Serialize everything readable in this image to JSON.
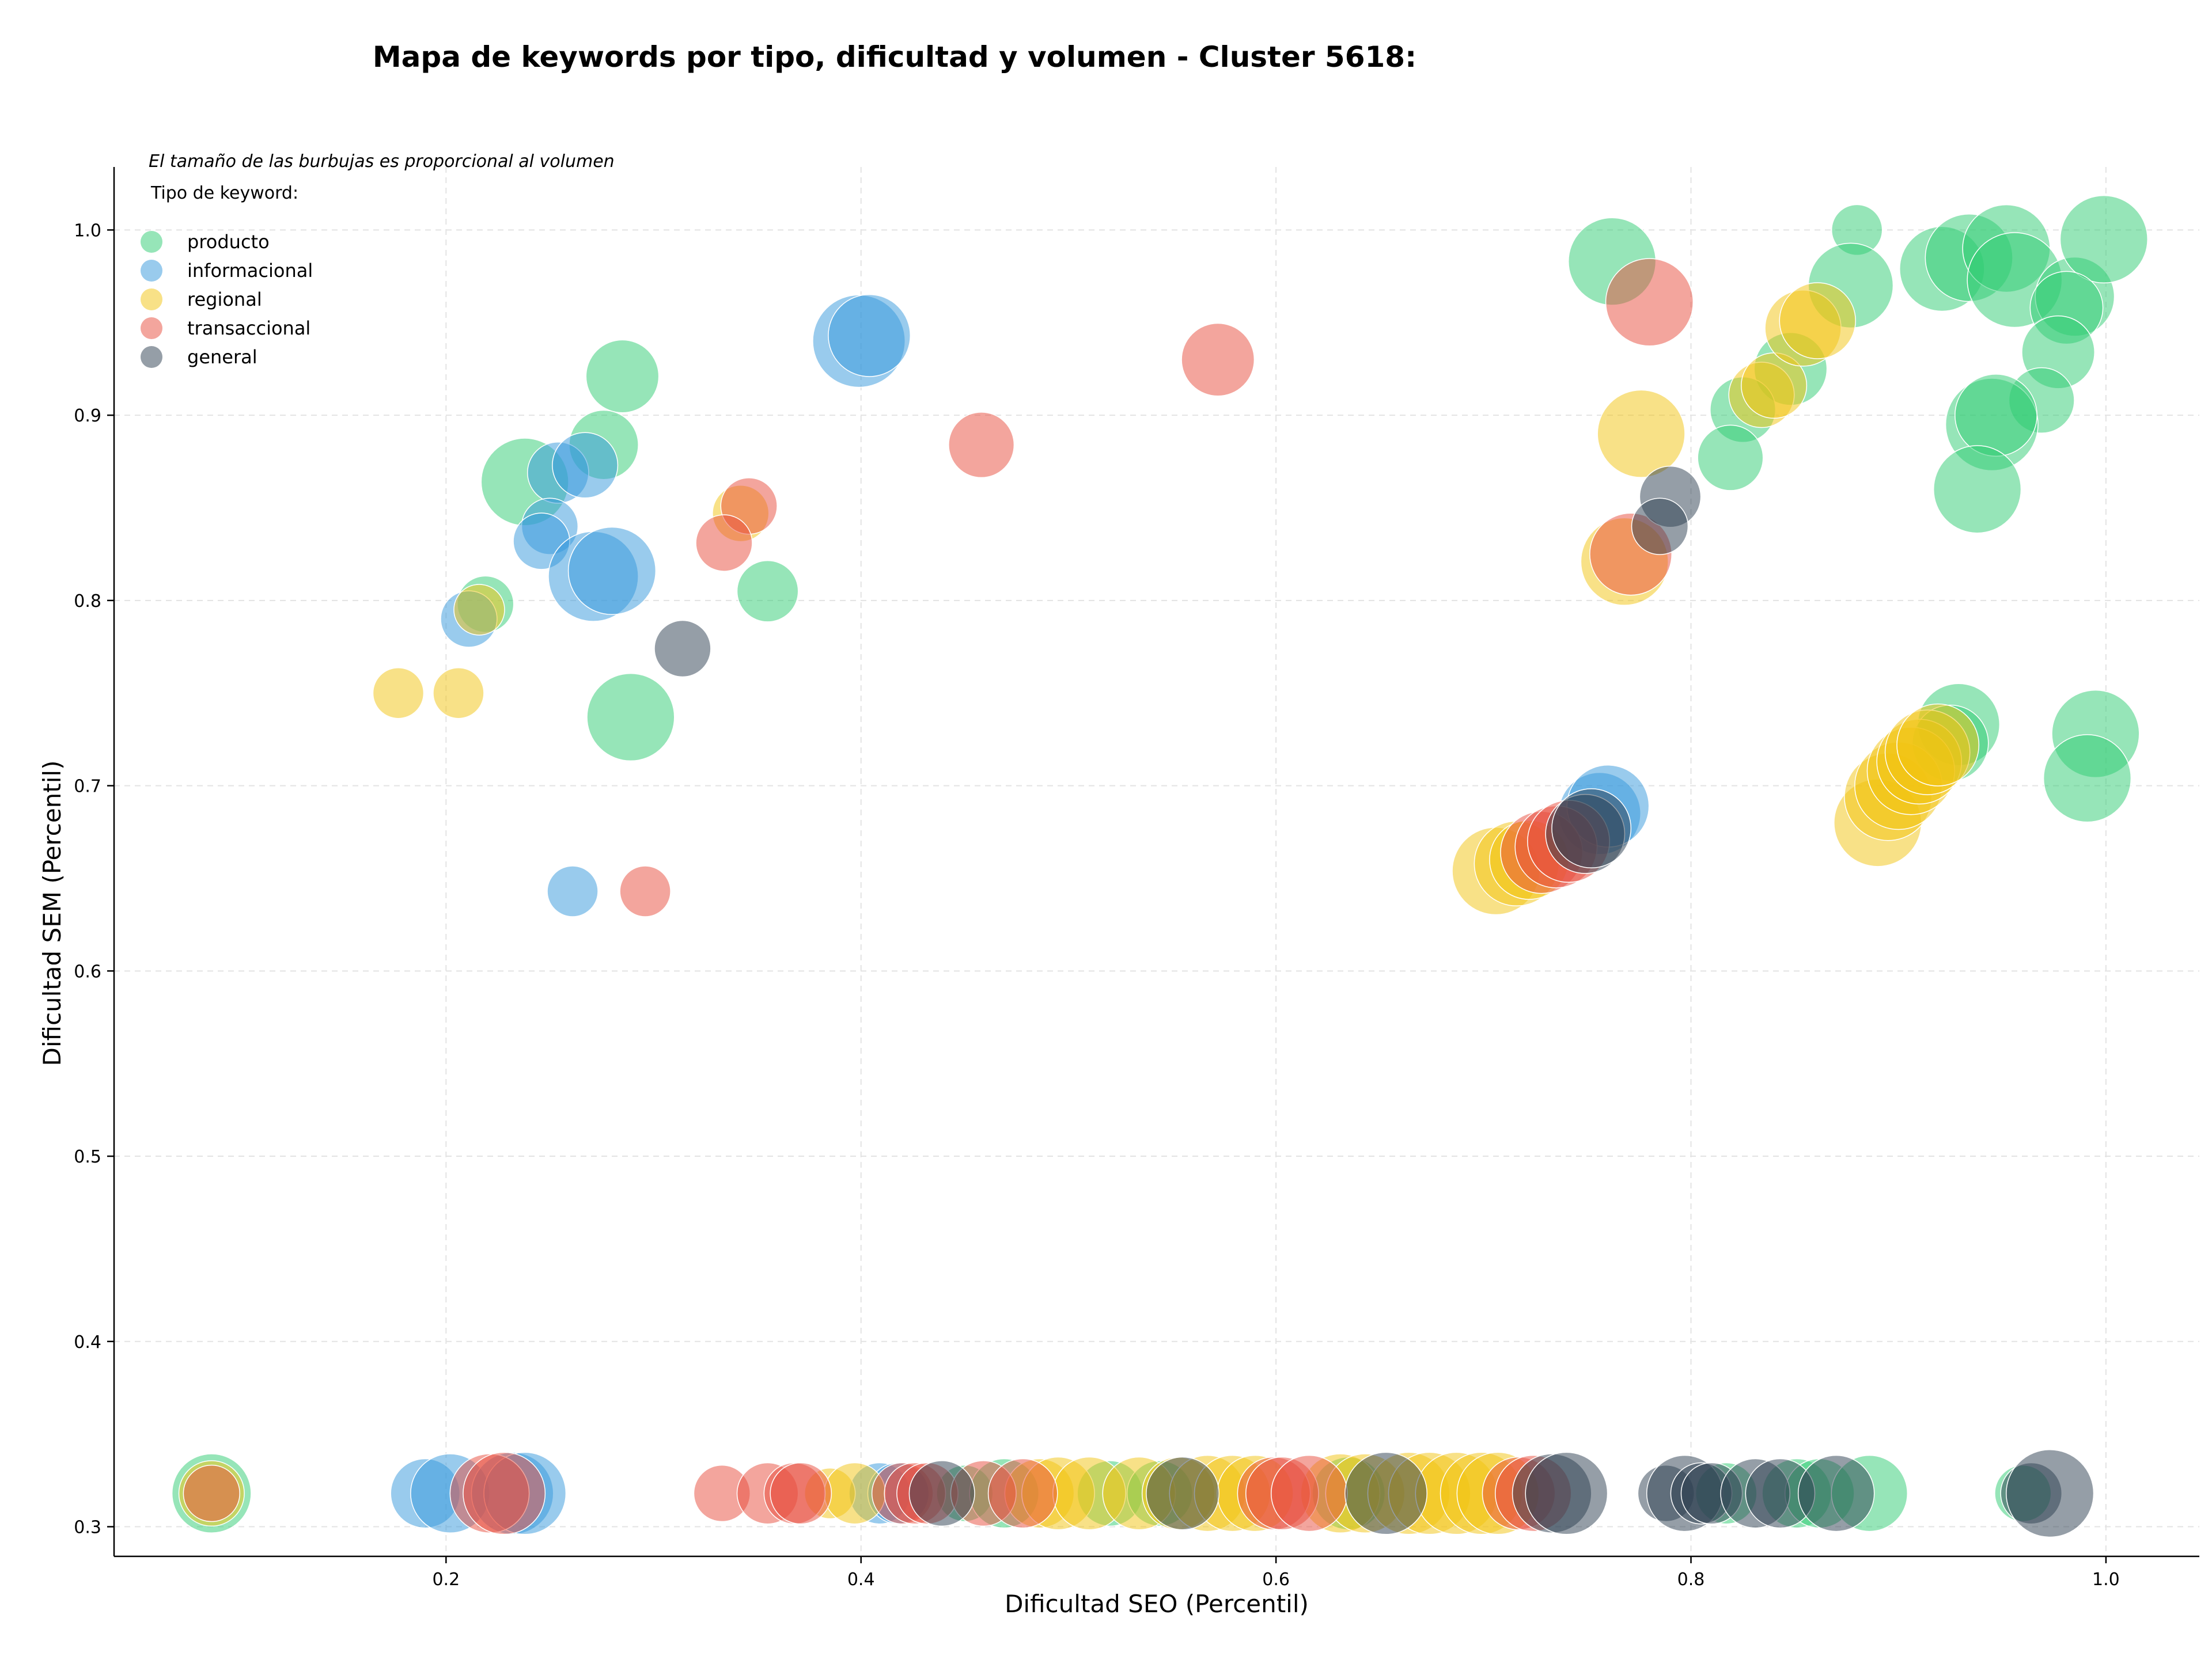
{
  "chart_data": {
    "type": "scatter",
    "title": "Mapa de keywords por tipo, dificultad y volumen - Cluster 5618:",
    "note": "El tamaño de las burbujas es proporcional al volumen",
    "xlabel": "Dificultad SEO (Percentil)",
    "ylabel": "Dificultad SEM (Percentil)",
    "xlim": [
      0.04,
      1.045
    ],
    "ylim": [
      0.284,
      1.034
    ],
    "xticks": [
      0.2,
      0.4,
      0.6,
      0.8,
      1.0
    ],
    "yticks": [
      0.3,
      0.4,
      0.5,
      0.6,
      0.7,
      0.8,
      0.9,
      1.0
    ],
    "xtick_labels": [
      "0.2",
      "0.4",
      "0.6",
      "0.8",
      "1.0"
    ],
    "ytick_labels": [
      "0.3",
      "0.4",
      "0.5",
      "0.6",
      "0.7",
      "0.8",
      "0.9",
      "1.0"
    ],
    "grid": true,
    "legend_title": "Tipo de keyword:",
    "legend_position": "top-left",
    "size_note": "bubble size proportional to volume (relative, 1-10)",
    "series": [
      {
        "name": "producto",
        "color": "#2ecc71",
        "points": [
          {
            "x": 0.238,
            "y": 0.864,
            "s": 6
          },
          {
            "x": 0.276,
            "y": 0.884,
            "s": 3
          },
          {
            "x": 0.285,
            "y": 0.921,
            "s": 3.5
          },
          {
            "x": 0.219,
            "y": 0.798,
            "s": 1.5
          },
          {
            "x": 0.289,
            "y": 0.737,
            "s": 6
          },
          {
            "x": 0.355,
            "y": 0.805,
            "s": 2
          },
          {
            "x": 0.762,
            "y": 0.983,
            "s": 6
          },
          {
            "x": 0.88,
            "y": 1.0,
            "s": 1
          },
          {
            "x": 0.877,
            "y": 0.97,
            "s": 5.5
          },
          {
            "x": 0.921,
            "y": 0.979,
            "s": 5.5
          },
          {
            "x": 0.934,
            "y": 0.985,
            "s": 6
          },
          {
            "x": 0.952,
            "y": 0.99,
            "s": 6
          },
          {
            "x": 0.956,
            "y": 0.973,
            "s": 7.5
          },
          {
            "x": 0.985,
            "y": 0.964,
            "s": 4.5
          },
          {
            "x": 0.999,
            "y": 0.995,
            "s": 6
          },
          {
            "x": 0.981,
            "y": 0.958,
            "s": 3.5
          },
          {
            "x": 0.977,
            "y": 0.934,
            "s": 3.5
          },
          {
            "x": 0.969,
            "y": 0.908,
            "s": 2.5
          },
          {
            "x": 0.848,
            "y": 0.925,
            "s": 3.5
          },
          {
            "x": 0.825,
            "y": 0.903,
            "s": 2.5
          },
          {
            "x": 0.819,
            "y": 0.877,
            "s": 2.5
          },
          {
            "x": 0.945,
            "y": 0.895,
            "s": 7
          },
          {
            "x": 0.947,
            "y": 0.9,
            "s": 5
          },
          {
            "x": 0.938,
            "y": 0.86,
            "s": 6
          },
          {
            "x": 0.929,
            "y": 0.733,
            "s": 5
          },
          {
            "x": 0.925,
            "y": 0.723,
            "s": 4
          },
          {
            "x": 0.995,
            "y": 0.728,
            "s": 6
          },
          {
            "x": 0.991,
            "y": 0.704,
            "s": 6
          },
          {
            "x": 0.087,
            "y": 0.318,
            "s": 4.5
          },
          {
            "x": 0.45,
            "y": 0.318,
            "s": 1.5
          },
          {
            "x": 0.469,
            "y": 0.318,
            "s": 3
          },
          {
            "x": 0.52,
            "y": 0.318,
            "s": 2.5
          },
          {
            "x": 0.544,
            "y": 0.318,
            "s": 2.5
          },
          {
            "x": 0.635,
            "y": 0.318,
            "s": 3.5
          },
          {
            "x": 0.817,
            "y": 0.318,
            "s": 2
          },
          {
            "x": 0.851,
            "y": 0.318,
            "s": 3
          },
          {
            "x": 0.862,
            "y": 0.318,
            "s": 3
          },
          {
            "x": 0.886,
            "y": 0.318,
            "s": 4
          },
          {
            "x": 0.96,
            "y": 0.318,
            "s": 1.5
          }
        ]
      },
      {
        "name": "informacional",
        "color": "#3498db",
        "points": [
          {
            "x": 0.399,
            "y": 0.94,
            "s": 7
          },
          {
            "x": 0.404,
            "y": 0.943,
            "s": 5
          },
          {
            "x": 0.254,
            "y": 0.869,
            "s": 2
          },
          {
            "x": 0.267,
            "y": 0.873,
            "s": 2.5
          },
          {
            "x": 0.25,
            "y": 0.84,
            "s": 1.5
          },
          {
            "x": 0.246,
            "y": 0.832,
            "s": 1.5
          },
          {
            "x": 0.271,
            "y": 0.813,
            "s": 6.5
          },
          {
            "x": 0.28,
            "y": 0.816,
            "s": 6
          },
          {
            "x": 0.211,
            "y": 0.79,
            "s": 1.5
          },
          {
            "x": 0.261,
            "y": 0.643,
            "s": 1
          },
          {
            "x": 0.756,
            "y": 0.685,
            "s": 5
          },
          {
            "x": 0.76,
            "y": 0.689,
            "s": 5
          },
          {
            "x": 0.19,
            "y": 0.318,
            "s": 3
          },
          {
            "x": 0.202,
            "y": 0.318,
            "s": 4.5
          },
          {
            "x": 0.232,
            "y": 0.318,
            "s": 5
          },
          {
            "x": 0.238,
            "y": 0.318,
            "s": 5
          },
          {
            "x": 0.409,
            "y": 0.318,
            "s": 2
          },
          {
            "x": 0.418,
            "y": 0.318,
            "s": 2
          }
        ]
      },
      {
        "name": "regional",
        "color": "#f1c40f",
        "points": [
          {
            "x": 0.177,
            "y": 0.75,
            "s": 1
          },
          {
            "x": 0.206,
            "y": 0.75,
            "s": 1
          },
          {
            "x": 0.216,
            "y": 0.795,
            "s": 1
          },
          {
            "x": 0.342,
            "y": 0.847,
            "s": 1.5
          },
          {
            "x": 0.776,
            "y": 0.89,
            "s": 6
          },
          {
            "x": 0.768,
            "y": 0.821,
            "s": 6
          },
          {
            "x": 0.834,
            "y": 0.911,
            "s": 2.5
          },
          {
            "x": 0.84,
            "y": 0.916,
            "s": 2.5
          },
          {
            "x": 0.854,
            "y": 0.947,
            "s": 4
          },
          {
            "x": 0.861,
            "y": 0.951,
            "s": 4
          },
          {
            "x": 0.706,
            "y": 0.654,
            "s": 6
          },
          {
            "x": 0.716,
            "y": 0.658,
            "s": 5.5
          },
          {
            "x": 0.722,
            "y": 0.66,
            "s": 4.5
          },
          {
            "x": 0.89,
            "y": 0.68,
            "s": 6
          },
          {
            "x": 0.895,
            "y": 0.694,
            "s": 6
          },
          {
            "x": 0.9,
            "y": 0.7,
            "s": 6
          },
          {
            "x": 0.906,
            "y": 0.708,
            "s": 6
          },
          {
            "x": 0.91,
            "y": 0.713,
            "s": 5.5
          },
          {
            "x": 0.914,
            "y": 0.718,
            "s": 5.5
          },
          {
            "x": 0.919,
            "y": 0.722,
            "s": 5
          },
          {
            "x": 0.087,
            "y": 0.318,
            "s": 2.5
          },
          {
            "x": 0.385,
            "y": 0.318,
            "s": 1
          },
          {
            "x": 0.397,
            "y": 0.318,
            "s": 2
          },
          {
            "x": 0.486,
            "y": 0.318,
            "s": 3
          },
          {
            "x": 0.495,
            "y": 0.318,
            "s": 3.5
          },
          {
            "x": 0.51,
            "y": 0.318,
            "s": 3.5
          },
          {
            "x": 0.534,
            "y": 0.318,
            "s": 3.5
          },
          {
            "x": 0.553,
            "y": 0.318,
            "s": 3.5
          },
          {
            "x": 0.567,
            "y": 0.318,
            "s": 4
          },
          {
            "x": 0.579,
            "y": 0.318,
            "s": 4
          },
          {
            "x": 0.59,
            "y": 0.318,
            "s": 4
          },
          {
            "x": 0.631,
            "y": 0.318,
            "s": 4.5
          },
          {
            "x": 0.643,
            "y": 0.318,
            "s": 4.5
          },
          {
            "x": 0.664,
            "y": 0.318,
            "s": 5
          },
          {
            "x": 0.674,
            "y": 0.318,
            "s": 5
          },
          {
            "x": 0.687,
            "y": 0.318,
            "s": 5
          },
          {
            "x": 0.699,
            "y": 0.318,
            "s": 5
          },
          {
            "x": 0.707,
            "y": 0.318,
            "s": 5
          }
        ]
      },
      {
        "name": "transaccional",
        "color": "#e74c3c",
        "points": [
          {
            "x": 0.572,
            "y": 0.93,
            "s": 3.5
          },
          {
            "x": 0.78,
            "y": 0.961,
            "s": 6
          },
          {
            "x": 0.458,
            "y": 0.884,
            "s": 2.5
          },
          {
            "x": 0.346,
            "y": 0.851,
            "s": 1.5
          },
          {
            "x": 0.334,
            "y": 0.831,
            "s": 1.5
          },
          {
            "x": 0.771,
            "y": 0.825,
            "s": 5
          },
          {
            "x": 0.296,
            "y": 0.643,
            "s": 1
          },
          {
            "x": 0.728,
            "y": 0.664,
            "s": 5
          },
          {
            "x": 0.735,
            "y": 0.667,
            "s": 5
          },
          {
            "x": 0.741,
            "y": 0.67,
            "s": 5
          },
          {
            "x": 0.087,
            "y": 0.318,
            "s": 1.5
          },
          {
            "x": 0.221,
            "y": 0.318,
            "s": 4.5
          },
          {
            "x": 0.228,
            "y": 0.318,
            "s": 5
          },
          {
            "x": 0.333,
            "y": 0.318,
            "s": 1.5
          },
          {
            "x": 0.355,
            "y": 0.318,
            "s": 2
          },
          {
            "x": 0.368,
            "y": 0.318,
            "s": 2
          },
          {
            "x": 0.371,
            "y": 0.318,
            "s": 2
          },
          {
            "x": 0.42,
            "y": 0.318,
            "s": 2
          },
          {
            "x": 0.426,
            "y": 0.318,
            "s": 2
          },
          {
            "x": 0.432,
            "y": 0.318,
            "s": 2
          },
          {
            "x": 0.459,
            "y": 0.318,
            "s": 2.5
          },
          {
            "x": 0.478,
            "y": 0.318,
            "s": 3
          },
          {
            "x": 0.599,
            "y": 0.318,
            "s": 3.5
          },
          {
            "x": 0.603,
            "y": 0.318,
            "s": 3.5
          },
          {
            "x": 0.616,
            "y": 0.318,
            "s": 4
          },
          {
            "x": 0.717,
            "y": 0.318,
            "s": 3.5
          },
          {
            "x": 0.724,
            "y": 0.318,
            "s": 4
          }
        ]
      },
      {
        "name": "general",
        "color": "#2c3e50",
        "points": [
          {
            "x": 0.314,
            "y": 0.774,
            "s": 1.5
          },
          {
            "x": 0.79,
            "y": 0.856,
            "s": 2
          },
          {
            "x": 0.785,
            "y": 0.84,
            "s": 1.5
          },
          {
            "x": 0.749,
            "y": 0.674,
            "s": 4.5
          },
          {
            "x": 0.752,
            "y": 0.677,
            "s": 4.5
          },
          {
            "x": 0.439,
            "y": 0.318,
            "s": 2.5
          },
          {
            "x": 0.555,
            "y": 0.318,
            "s": 3.5
          },
          {
            "x": 0.653,
            "y": 0.318,
            "s": 5
          },
          {
            "x": 0.733,
            "y": 0.318,
            "s": 4.5
          },
          {
            "x": 0.74,
            "y": 0.318,
            "s": 5
          },
          {
            "x": 0.788,
            "y": 0.318,
            "s": 1.5
          },
          {
            "x": 0.797,
            "y": 0.318,
            "s": 4
          },
          {
            "x": 0.805,
            "y": 0.318,
            "s": 2
          },
          {
            "x": 0.81,
            "y": 0.318,
            "s": 2
          },
          {
            "x": 0.831,
            "y": 0.318,
            "s": 3
          },
          {
            "x": 0.843,
            "y": 0.318,
            "s": 3
          },
          {
            "x": 0.87,
            "y": 0.318,
            "s": 4
          },
          {
            "x": 0.964,
            "y": 0.318,
            "s": 2
          },
          {
            "x": 0.973,
            "y": 0.318,
            "s": 6
          }
        ]
      }
    ]
  }
}
